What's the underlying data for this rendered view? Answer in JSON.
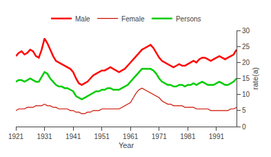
{
  "chart_data": {
    "type": "line",
    "x": [
      1921,
      1922,
      1923,
      1924,
      1925,
      1926,
      1927,
      1928,
      1929,
      1930,
      1931,
      1932,
      1933,
      1934,
      1935,
      1936,
      1937,
      1938,
      1939,
      1940,
      1941,
      1942,
      1943,
      1944,
      1945,
      1946,
      1947,
      1948,
      1949,
      1950,
      1951,
      1952,
      1953,
      1954,
      1955,
      1956,
      1957,
      1958,
      1959,
      1960,
      1961,
      1962,
      1963,
      1964,
      1965,
      1966,
      1967,
      1968,
      1969,
      1970,
      1971,
      1972,
      1973,
      1974,
      1975,
      1976,
      1977,
      1978,
      1979,
      1980,
      1981,
      1982,
      1983,
      1984,
      1985,
      1986,
      1987,
      1988,
      1989,
      1990,
      1991,
      1992,
      1993,
      1994,
      1995,
      1996,
      1997,
      1998
    ],
    "series": [
      {
        "name": "Male",
        "color": "#FF0000",
        "values": [
          22.0,
          23.0,
          23.5,
          22.5,
          23.0,
          24.0,
          23.5,
          22.0,
          21.5,
          24.0,
          27.5,
          26.0,
          24.0,
          22.0,
          20.5,
          20.0,
          19.5,
          19.0,
          18.5,
          18.0,
          17.0,
          15.0,
          13.5,
          13.0,
          13.5,
          14.0,
          15.0,
          16.0,
          16.5,
          17.0,
          17.5,
          17.5,
          18.0,
          18.5,
          18.0,
          17.5,
          17.0,
          17.5,
          18.0,
          19.0,
          20.0,
          21.0,
          22.0,
          23.0,
          24.0,
          24.5,
          25.0,
          25.5,
          24.5,
          23.0,
          21.5,
          20.5,
          20.0,
          19.5,
          19.0,
          18.5,
          19.0,
          19.5,
          19.0,
          19.0,
          19.5,
          20.0,
          20.5,
          20.0,
          21.0,
          21.5,
          21.5,
          21.0,
          20.5,
          21.0,
          21.5,
          22.0,
          21.5,
          21.0,
          21.5,
          22.0,
          22.5,
          24.0
        ]
      },
      {
        "name": "Female",
        "color": "#CC1100",
        "values": [
          5.0,
          5.5,
          5.5,
          5.5,
          6.0,
          6.0,
          6.0,
          6.5,
          6.5,
          6.5,
          7.0,
          6.5,
          6.5,
          6.0,
          6.0,
          5.5,
          5.5,
          5.5,
          5.5,
          5.0,
          5.0,
          4.5,
          4.5,
          4.0,
          4.0,
          4.5,
          4.5,
          5.0,
          5.0,
          5.0,
          5.5,
          5.5,
          5.5,
          5.5,
          5.5,
          5.5,
          5.5,
          6.0,
          6.5,
          7.0,
          7.5,
          9.0,
          10.5,
          11.5,
          12.0,
          11.5,
          11.0,
          10.5,
          10.0,
          9.5,
          9.0,
          8.0,
          7.5,
          7.0,
          7.0,
          6.5,
          6.5,
          6.5,
          6.5,
          6.0,
          6.0,
          6.0,
          6.0,
          5.5,
          5.5,
          5.5,
          5.5,
          5.5,
          5.0,
          5.0,
          5.0,
          5.0,
          5.0,
          5.0,
          5.0,
          5.5,
          5.5,
          6.0
        ]
      },
      {
        "name": "Persons",
        "color": "#00CC00",
        "values": [
          14.0,
          14.5,
          14.5,
          14.0,
          14.5,
          15.0,
          14.5,
          14.0,
          14.0,
          15.5,
          17.0,
          16.5,
          15.0,
          14.0,
          13.0,
          12.5,
          12.5,
          12.0,
          12.0,
          11.5,
          11.0,
          9.5,
          9.0,
          8.5,
          9.0,
          9.5,
          10.0,
          10.5,
          11.0,
          11.0,
          11.5,
          11.5,
          12.0,
          12.0,
          11.5,
          11.5,
          11.5,
          12.0,
          12.5,
          13.0,
          14.0,
          15.0,
          16.0,
          17.0,
          18.0,
          18.0,
          18.0,
          18.0,
          17.5,
          16.5,
          15.0,
          14.0,
          13.5,
          13.0,
          13.0,
          12.5,
          12.5,
          13.0,
          13.0,
          12.5,
          13.0,
          13.0,
          13.5,
          13.0,
          13.5,
          14.0,
          13.5,
          13.0,
          13.0,
          13.0,
          13.5,
          14.0,
          13.5,
          13.0,
          13.0,
          13.5,
          14.0,
          15.0
        ]
      }
    ],
    "x_label": "Year",
    "y_label": "rate(a)",
    "xlim": [
      1921,
      1998
    ],
    "xticks": [
      1921,
      1931,
      1941,
      1951,
      1961,
      1971,
      1981,
      1991
    ],
    "ylim": [
      0,
      30
    ],
    "yticks": [
      0,
      5,
      10,
      15,
      20,
      25,
      30
    ],
    "grid": false,
    "legend": "top"
  }
}
